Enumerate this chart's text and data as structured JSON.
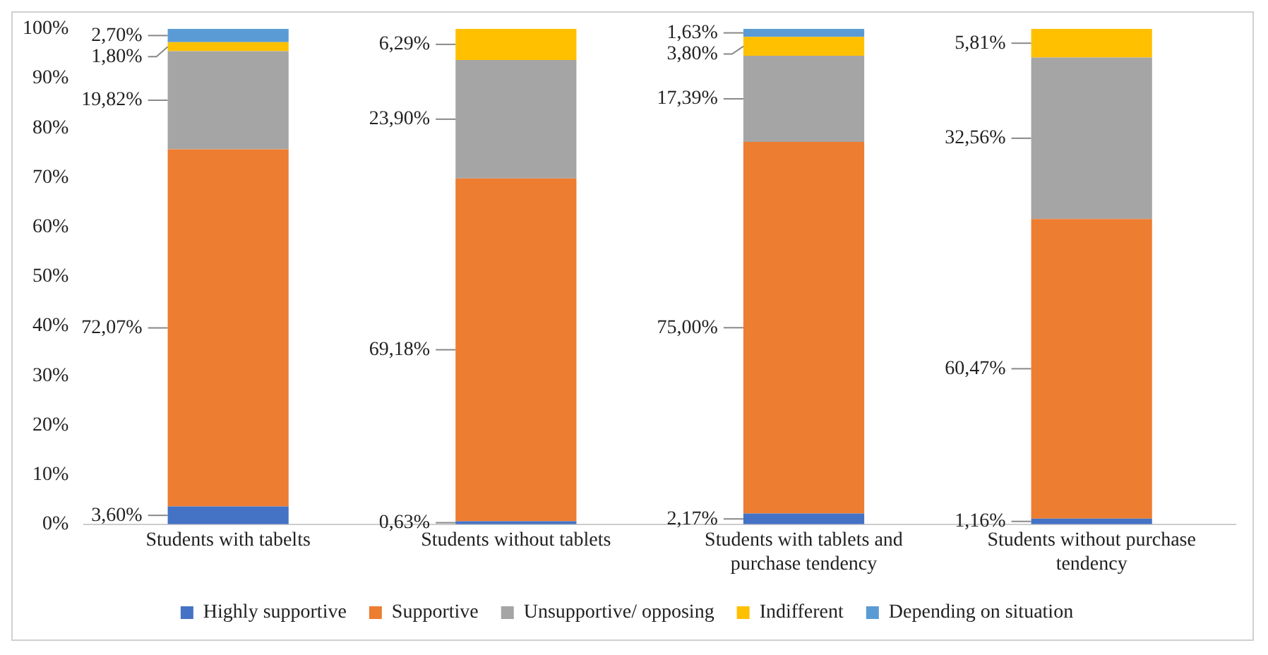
{
  "chart_data": {
    "type": "bar",
    "stacked": true,
    "categories": [
      "Students with tabelts",
      "Students without tablets",
      "Students with tablets and purchase tendency",
      "Students without purchase tendency"
    ],
    "ylim": [
      0,
      100
    ],
    "yticks": [
      {
        "value": 0,
        "label": "0%"
      },
      {
        "value": 10,
        "label": "10%"
      },
      {
        "value": 20,
        "label": "20%"
      },
      {
        "value": 30,
        "label": "30%"
      },
      {
        "value": 40,
        "label": "40%"
      },
      {
        "value": 50,
        "label": "50%"
      },
      {
        "value": 60,
        "label": "60%"
      },
      {
        "value": 70,
        "label": "70%"
      },
      {
        "value": 80,
        "label": "80%"
      },
      {
        "value": 90,
        "label": "90%"
      },
      {
        "value": 100,
        "label": "100%"
      }
    ],
    "grid": false,
    "legend": "bottom",
    "series": [
      {
        "name": "Highly supportive",
        "color": "#4472c4",
        "values": [
          3.6,
          0.63,
          2.17,
          1.16
        ],
        "value_labels": [
          "3,60%",
          "0,63%",
          "2,17%",
          "1,16%"
        ]
      },
      {
        "name": "Supportive",
        "color": "#ed7d31",
        "values": [
          72.07,
          69.18,
          75.0,
          60.47
        ],
        "value_labels": [
          "72,07%",
          "69,18%",
          "75,00%",
          "60,47%"
        ]
      },
      {
        "name": "Unsupportive/ opposing",
        "color": "#a5a5a5",
        "values": [
          19.82,
          23.9,
          17.39,
          32.56
        ],
        "value_labels": [
          "19,82%",
          "23,90%",
          "17,39%",
          "32,56%"
        ]
      },
      {
        "name": "Indifferent",
        "color": "#ffc000",
        "values": [
          1.8,
          6.29,
          3.8,
          5.81
        ],
        "value_labels": [
          "1,80%",
          "6,29%",
          "3,80%",
          "5,81%"
        ]
      },
      {
        "name": "Depending on situation",
        "color": "#5b9bd5",
        "values": [
          2.7,
          null,
          1.63,
          null
        ],
        "value_labels": [
          "2,70%",
          null,
          "1,63%",
          null
        ]
      }
    ]
  }
}
